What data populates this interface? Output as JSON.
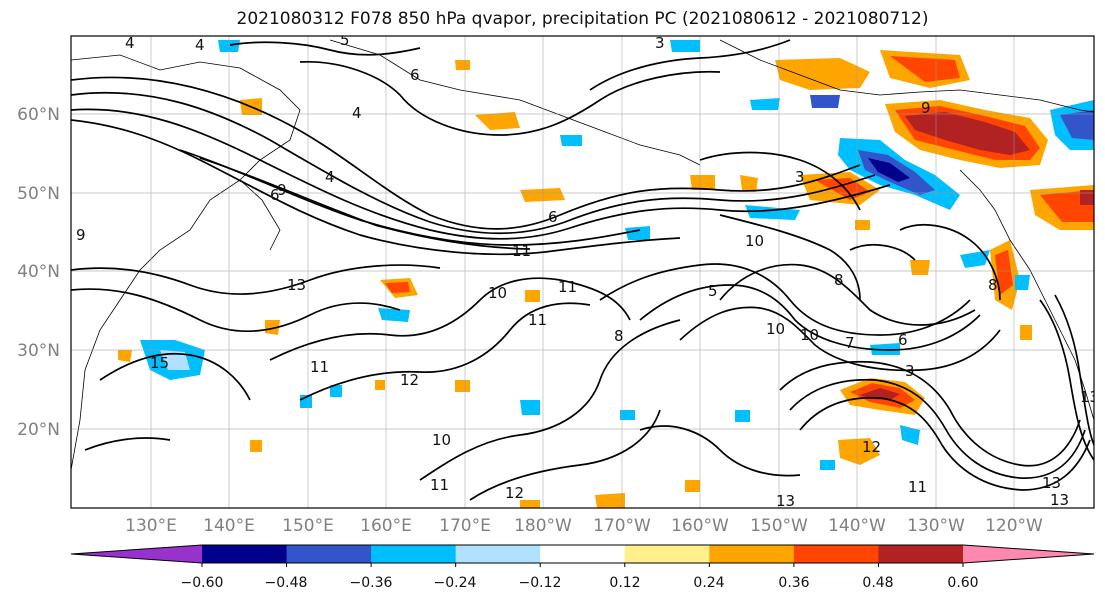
{
  "title": "2021080312 F078 850 hPa qvapor, precipitation PC (2021080612 - 2021080712)",
  "map": {
    "lat_labels": [
      "60°N",
      "50°N",
      "40°N",
      "30°N",
      "20°N"
    ],
    "lon_labels": [
      "130°E",
      "140°E",
      "150°E",
      "160°E",
      "170°E",
      "180°W",
      "170°W",
      "160°W",
      "150°W",
      "140°W",
      "130°W",
      "120°W"
    ],
    "contour_labels": [
      "3",
      "4",
      "4",
      "6",
      "6",
      "4",
      "9",
      "3",
      "4",
      "6",
      "11",
      "10",
      "13",
      "13",
      "10",
      "11",
      "11",
      "9",
      "8",
      "8",
      "5",
      "10",
      "10",
      "7",
      "6",
      "3",
      "15",
      "11",
      "12",
      "10",
      "11",
      "12",
      "13",
      "12",
      "11",
      "13",
      "13",
      "9",
      "5",
      "8"
    ]
  },
  "colorbar": {
    "tick_labels": [
      "−0.60",
      "−0.48",
      "−0.36",
      "−0.24",
      "−0.12",
      "0.12",
      "0.24",
      "0.36",
      "0.48",
      "0.60"
    ],
    "colors": [
      "#9932cc",
      "#00008b",
      "#3355cc",
      "#00bfff",
      "#b0e2ff",
      "#ffffff",
      "#fff08c",
      "#ffa500",
      "#ff4500",
      "#b22222",
      "#ff88b0"
    ]
  },
  "chart_data": {
    "type": "heatmap",
    "title": "2021080312 F078 850 hPa qvapor, precipitation PC (2021080612 - 2021080712)",
    "lon_ticks": [
      "130°E",
      "140°E",
      "150°E",
      "160°E",
      "170°E",
      "180°W",
      "170°W",
      "160°W",
      "150°W",
      "140°W",
      "130°W",
      "120°W"
    ],
    "lat_ticks": [
      "60°N",
      "50°N",
      "40°N",
      "30°N",
      "20°N"
    ],
    "colorbar_levels": [
      -0.6,
      -0.48,
      -0.36,
      -0.24,
      -0.12,
      0.12,
      0.24,
      0.36,
      0.48,
      0.6
    ],
    "colorbar_extend": "both",
    "grid": true
  }
}
